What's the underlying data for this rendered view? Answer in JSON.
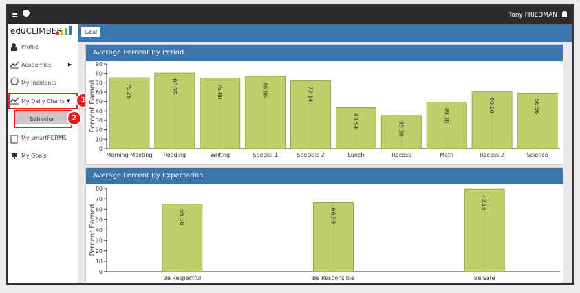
{
  "topbar": {
    "user": "Tony FRIEDMAN"
  },
  "sidebar": {
    "logo": "eduCLIMBER",
    "items": [
      "Profile",
      "Academics",
      "My Incidents",
      "My Daily Charts",
      "Behavior",
      "My smartFORMS",
      "My Goals"
    ],
    "callouts": [
      "1",
      "2"
    ]
  },
  "tab": "Goal",
  "chart_data": [
    {
      "type": "bar",
      "title": "Average Percent By Period",
      "y_label": "Percent Earned",
      "categories": [
        "Morning Meeting",
        "Reading",
        "Writing",
        "Special 1",
        "Specials 2",
        "Lunch",
        "Recess",
        "Math",
        "Recess 2",
        "Science"
      ],
      "values": [
        75.26,
        80.35,
        75.0,
        76.86,
        72.14,
        43.54,
        35.2,
        49.38,
        60.2,
        58.96
      ],
      "value_labels": [
        "75.26",
        "80.35",
        "75.00",
        "76.86",
        "72.14",
        "43.54",
        "35.20",
        "49.38",
        "60.20",
        "58.96"
      ],
      "color": "#bccf6b",
      "ylim": [
        0,
        90
      ],
      "yticks": [
        0,
        10,
        20,
        30,
        40,
        50,
        60,
        70,
        80,
        90
      ]
    },
    {
      "type": "bar",
      "title": "Average Percent By Expectation",
      "y_label": "Percent Earned",
      "categories": [
        "Be Respectful",
        "Be Responsible",
        "Be Safe"
      ],
      "values": [
        65.08,
        66.53,
        79.16
      ],
      "value_labels": [
        "65.08",
        "66.53",
        "79.16"
      ],
      "color": "#bccf6b",
      "ylim": [
        0,
        80
      ],
      "yticks": [
        0,
        10,
        20,
        30,
        40,
        50,
        60,
        70,
        80
      ]
    }
  ]
}
